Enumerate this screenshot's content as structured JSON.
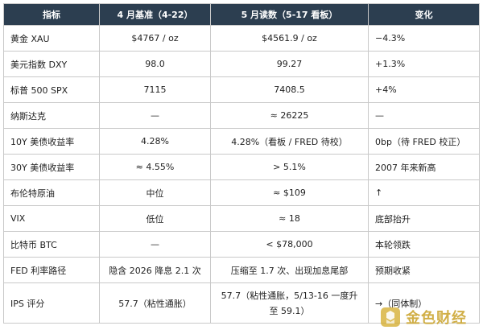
{
  "table": {
    "headers": [
      "指标",
      "4 月基准（4-22）",
      "5 月读数（5-17 看板）",
      "变化"
    ],
    "rows": [
      {
        "indicator": "黄金 XAU",
        "baseline": "$4767 / oz",
        "reading": "$4561.9 / oz",
        "change": "−4.3%"
      },
      {
        "indicator": "美元指数 DXY",
        "baseline": "98.0",
        "reading": "99.27",
        "change": "+1.3%"
      },
      {
        "indicator": "标普 500 SPX",
        "baseline": "7115",
        "reading": "7408.5",
        "change": "+4%"
      },
      {
        "indicator": "纳斯达克",
        "baseline": "—",
        "reading": "≈ 26225",
        "change": "—"
      },
      {
        "indicator": "10Y 美债收益率",
        "baseline": "4.28%",
        "reading": "4.28%（看板 / FRED 待校）",
        "change": "0bp（待 FRED 校正）"
      },
      {
        "indicator": "30Y 美债收益率",
        "baseline": "≈ 4.55%",
        "reading": "> 5.1%",
        "change": "2007 年来新高"
      },
      {
        "indicator": "布伦特原油",
        "baseline": "中位",
        "reading": "≈ $109",
        "change": "↑"
      },
      {
        "indicator": "VIX",
        "baseline": "低位",
        "reading": "≈ 18",
        "change": "底部抬升"
      },
      {
        "indicator": "比特币 BTC",
        "baseline": "—",
        "reading": "< $78,000",
        "change": "本轮领跌"
      },
      {
        "indicator": "FED 利率路径",
        "baseline": "隐含 2026 降息 2.1 次",
        "reading": "压缩至 1.7 次、出现加息尾部",
        "change": "预期收紧"
      },
      {
        "indicator": "IPS 评分",
        "baseline": "57.7（粘性通胀）",
        "reading": "57.7（粘性通胀，5/13-16 一度升至 59.1）",
        "change": "→（同体制）"
      }
    ]
  },
  "watermark": {
    "text": "金色财经",
    "icon": "jinse-logo-icon",
    "color": "#c9a227"
  }
}
